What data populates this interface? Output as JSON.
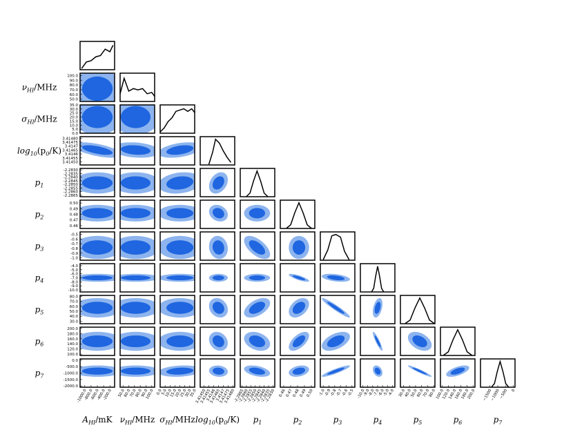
{
  "chart_data": {
    "type": "corner",
    "colors": {
      "outer": "#8db4ee",
      "inner": "#1f66e0",
      "line": "#000000"
    },
    "params": [
      {
        "label_parts": [
          "A",
          "HI",
          "/mK"
        ],
        "lim": [
          -1150,
          -50
        ],
        "ticks": [
          {
            "value": -1000,
            "label": "-1000.0"
          },
          {
            "value": -800,
            "label": "-800.0"
          },
          {
            "value": -600,
            "label": "-600.0"
          },
          {
            "value": -400,
            "label": "-400.0"
          },
          {
            "value": -200,
            "label": "-200.0"
          }
        ],
        "mean": -600,
        "sd": 320,
        "marginal": {
          "x": [
            -1100,
            -950,
            -800,
            -650,
            -500,
            -350,
            -200,
            -100
          ],
          "y": [
            0.05,
            0.3,
            0.35,
            0.5,
            0.55,
            0.8,
            0.7,
            0.95
          ]
        }
      },
      {
        "label_parts": [
          "ν",
          "HI",
          "/MHz"
        ],
        "lim": [
          45,
          105
        ],
        "ticks": [
          {
            "value": 50,
            "label": "50.0"
          },
          {
            "value": 60,
            "label": "60.0"
          },
          {
            "value": 70,
            "label": "70.0"
          },
          {
            "value": 80,
            "label": "80.0"
          },
          {
            "value": 90,
            "label": "90.0"
          },
          {
            "value": 100,
            "label": "100.0"
          }
        ],
        "mean": 72,
        "sd": 17,
        "marginal": {
          "x": [
            45,
            52,
            60,
            68,
            76,
            84,
            92,
            100,
            105
          ],
          "y": [
            0.3,
            0.9,
            0.4,
            0.5,
            0.45,
            0.5,
            0.3,
            0.35,
            0.2
          ]
        }
      },
      {
        "label_parts": [
          "σ",
          "HI",
          "/MHz"
        ],
        "lim": [
          0,
          35
        ],
        "ticks": [
          {
            "value": 0,
            "label": "0.0"
          },
          {
            "value": 5,
            "label": "5.0"
          },
          {
            "value": 10,
            "label": "10.0"
          },
          {
            "value": 15,
            "label": "15.0"
          },
          {
            "value": 20,
            "label": "20.0"
          },
          {
            "value": 25,
            "label": "25.0"
          },
          {
            "value": 30,
            "label": "30.0"
          },
          {
            "value": 35,
            "label": "35.0"
          }
        ],
        "mean": 20,
        "sd": 9,
        "marginal": {
          "x": [
            0,
            4,
            8,
            12,
            16,
            20,
            24,
            28,
            32,
            35
          ],
          "y": [
            0.05,
            0.2,
            0.45,
            0.6,
            0.85,
            0.9,
            0.95,
            0.85,
            0.95,
            0.8
          ]
        }
      },
      {
        "label_parts": [
          "log",
          "10",
          "(p",
          "0",
          "/K)"
        ],
        "lim": [
          3.41446,
          3.41482
        ],
        "ticks": [
          {
            "value": 3.4145,
            "label": "3.41450"
          },
          3.41455,
          3.4146,
          3.41465,
          3.4147,
          3.41475,
          {
            "value": 3.4148,
            "label": "3.41480"
          }
        ],
        "mean": 3.41465,
        "sd": 4e-05,
        "marginal": {
          "x": [
            3.41455,
            3.41459,
            3.41462,
            3.41466,
            3.4147,
            3.41474,
            3.41478
          ],
          "y": [
            0.02,
            0.5,
            1,
            0.85,
            0.55,
            0.3,
            0.1
          ]
        }
      },
      {
        "label_parts": [
          "p",
          "1"
        ],
        "lim": [
          -2.2867,
          -2.2828
        ],
        "ticks": [
          -2.2865,
          {
            "value": -2.286,
            "label": "-2.2860"
          },
          -2.2855,
          {
            "value": -2.285,
            "label": "-2.2850"
          },
          -2.2845,
          {
            "value": -2.284,
            "label": "-2.2840"
          },
          -2.2835,
          {
            "value": -2.283,
            "label": "-2.2830"
          }
        ],
        "mean": -2.2848,
        "sd": 0.0006,
        "marginal": {
          "x": [
            -2.286,
            -2.2856,
            -2.2852,
            -2.2848,
            -2.2844,
            -2.284,
            -2.2836
          ],
          "y": [
            0.01,
            0.14,
            0.61,
            1,
            0.61,
            0.14,
            0.01
          ]
        }
      },
      {
        "label_parts": [
          "p",
          "2"
        ],
        "lim": [
          0.455,
          0.505
        ],
        "ticks": [
          0.46,
          0.47,
          0.48,
          0.49,
          {
            "value": 0.5,
            "label": "0.50"
          }
        ],
        "mean": 0.482,
        "sd": 0.006,
        "marginal": {
          "x": [
            0.464,
            0.47,
            0.476,
            0.482,
            0.488,
            0.494,
            0.5
          ],
          "y": [
            0.01,
            0.14,
            0.61,
            1,
            0.61,
            0.14,
            0.01
          ]
        }
      },
      {
        "label_parts": [
          "p",
          "3"
        ],
        "lim": [
          -1.05,
          -0.45
        ],
        "ticks": [
          {
            "value": -1,
            "label": "-1.0"
          },
          -0.9,
          -0.8,
          -0.7,
          -0.6,
          -0.5
        ],
        "mean": -0.78,
        "sd": 0.1,
        "marginal": {
          "x": [
            -1.0,
            -0.92,
            -0.85,
            -0.78,
            -0.7,
            -0.63,
            -0.55
          ],
          "y": [
            0.02,
            0.4,
            0.95,
            1,
            0.9,
            0.35,
            0.02
          ]
        }
      },
      {
        "label_parts": [
          "p",
          "4"
        ],
        "lim": [
          -10.5,
          -3.5
        ],
        "ticks": [
          {
            "value": -10,
            "label": "-10.0"
          },
          {
            "value": -9,
            "label": "-9.0"
          },
          {
            "value": -8,
            "label": "-8.0"
          },
          {
            "value": -7,
            "label": "-7.0"
          },
          {
            "value": -6,
            "label": "-6.0"
          },
          {
            "value": -5,
            "label": "-5.0"
          },
          {
            "value": -4,
            "label": "-4.0"
          }
        ],
        "mean": -7,
        "sd": 0.4,
        "marginal": {
          "x": [
            -8.2,
            -7.8,
            -7.4,
            -7.0,
            -6.6,
            -6.2,
            -5.8
          ],
          "y": [
            0.01,
            0.14,
            0.61,
            1,
            0.61,
            0.14,
            0.01
          ]
        }
      },
      {
        "label_parts": [
          "p",
          "5"
        ],
        "lim": [
          25,
          82
        ],
        "ticks": [
          {
            "value": 30,
            "label": "30.0"
          },
          {
            "value": 40,
            "label": "40.0"
          },
          {
            "value": 50,
            "label": "50.0"
          },
          {
            "value": 60,
            "label": "60.0"
          },
          {
            "value": 70,
            "label": "70.0"
          },
          {
            "value": 80,
            "label": "80.0"
          }
        ],
        "mean": 57,
        "sd": 8,
        "marginal": {
          "x": [
            33,
            41,
            49,
            57,
            65,
            73,
            81
          ],
          "y": [
            0.01,
            0.14,
            0.61,
            1,
            0.61,
            0.14,
            0.01
          ]
        }
      },
      {
        "label_parts": [
          "p",
          "6"
        ],
        "lim": [
          95,
          205
        ],
        "ticks": [
          {
            "value": 100,
            "label": "100.0"
          },
          {
            "value": 120,
            "label": "120.0"
          },
          {
            "value": 140,
            "label": "140.0"
          },
          {
            "value": 160,
            "label": "160.0"
          },
          {
            "value": 180,
            "label": "180.0"
          },
          {
            "value": 200,
            "label": "200.0"
          }
        ],
        "mean": 150,
        "sd": 15,
        "marginal": {
          "x": [
            105,
            120,
            135,
            150,
            165,
            180,
            195
          ],
          "y": [
            0.01,
            0.14,
            0.61,
            1,
            0.61,
            0.14,
            0.01
          ]
        }
      },
      {
        "label_parts": [
          "p",
          "7"
        ],
        "lim": [
          -2100,
          100
        ],
        "ticks": [
          {
            "value": -2000,
            "label": "-2000.0"
          },
          {
            "value": -1500,
            "label": "-1500.0"
          },
          {
            "value": -1000,
            "label": "-1000.0"
          },
          {
            "value": -500,
            "label": "-500.0"
          },
          {
            "value": 0,
            "label": "0.0"
          }
        ],
        "xticks": [
          {
            "value": -1500,
            "label": "−1500"
          },
          {
            "value": -1000,
            "label": "−1000"
          },
          {
            "value": -500,
            "label": "−500"
          },
          0
        ],
        "mean": -850,
        "sd": 180,
        "marginal": {
          "x": [
            -1390,
            -1210,
            -1030,
            -850,
            -670,
            -490,
            -310
          ],
          "y": [
            0.01,
            0.14,
            0.61,
            1,
            0.61,
            0.14,
            0.01
          ]
        }
      }
    ],
    "correlations": [
      [
        0
      ],
      [
        0,
        0
      ],
      [
        -0.6,
        -0.2,
        0.4
      ],
      [
        0,
        0,
        0.2,
        0.3
      ],
      [
        0,
        0,
        0,
        -0.2,
        0
      ],
      [
        0,
        0,
        0,
        -0.1,
        -0.6,
        0
      ],
      [
        0,
        0,
        0,
        0,
        0,
        -0.8,
        -0.4
      ],
      [
        0,
        0,
        0,
        -0.2,
        0.5,
        0.4,
        -0.95,
        0.4
      ],
      [
        0,
        0,
        0,
        -0.2,
        -0.3,
        0.6,
        0.5,
        -0.9,
        -0.4
      ],
      [
        0,
        0,
        0.2,
        -0.1,
        -0.4,
        0.3,
        0.9,
        -0.3,
        -0.95,
        0.6
      ]
    ]
  }
}
